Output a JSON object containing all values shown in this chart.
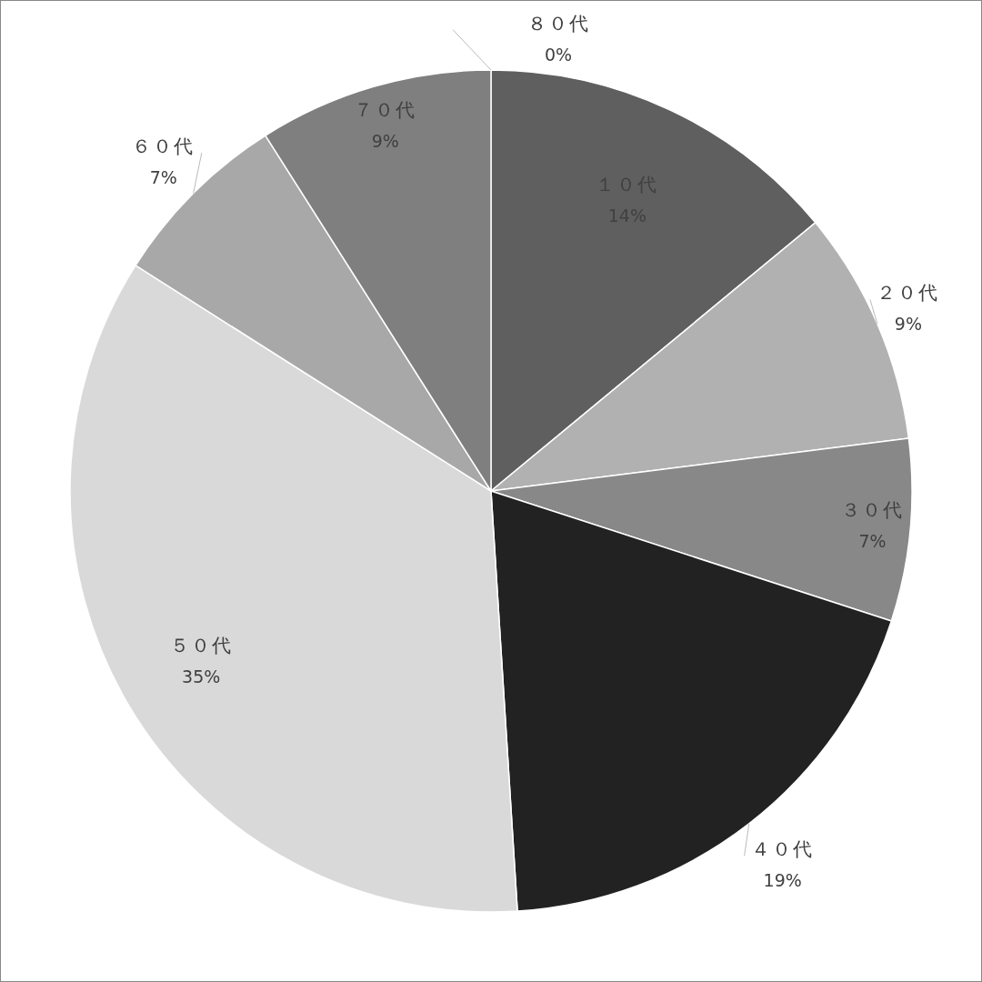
{
  "chart_data": {
    "type": "pie",
    "categories": [
      "１０代",
      "２０代",
      "３０代",
      "４０代",
      "５０代",
      "６０代",
      "７０代",
      "８０代"
    ],
    "values": [
      14,
      9,
      7,
      19,
      35,
      7,
      9,
      0
    ],
    "value_labels": [
      "14%",
      "9%",
      "7%",
      "19%",
      "35%",
      "7%",
      "9%",
      "0%"
    ],
    "colors": [
      "#5f5f5f",
      "#b1b1b1",
      "#888888",
      "#222222",
      "#d9d9d9",
      "#a8a8a8",
      "#7f7f7f",
      "#6a6a6a"
    ]
  }
}
